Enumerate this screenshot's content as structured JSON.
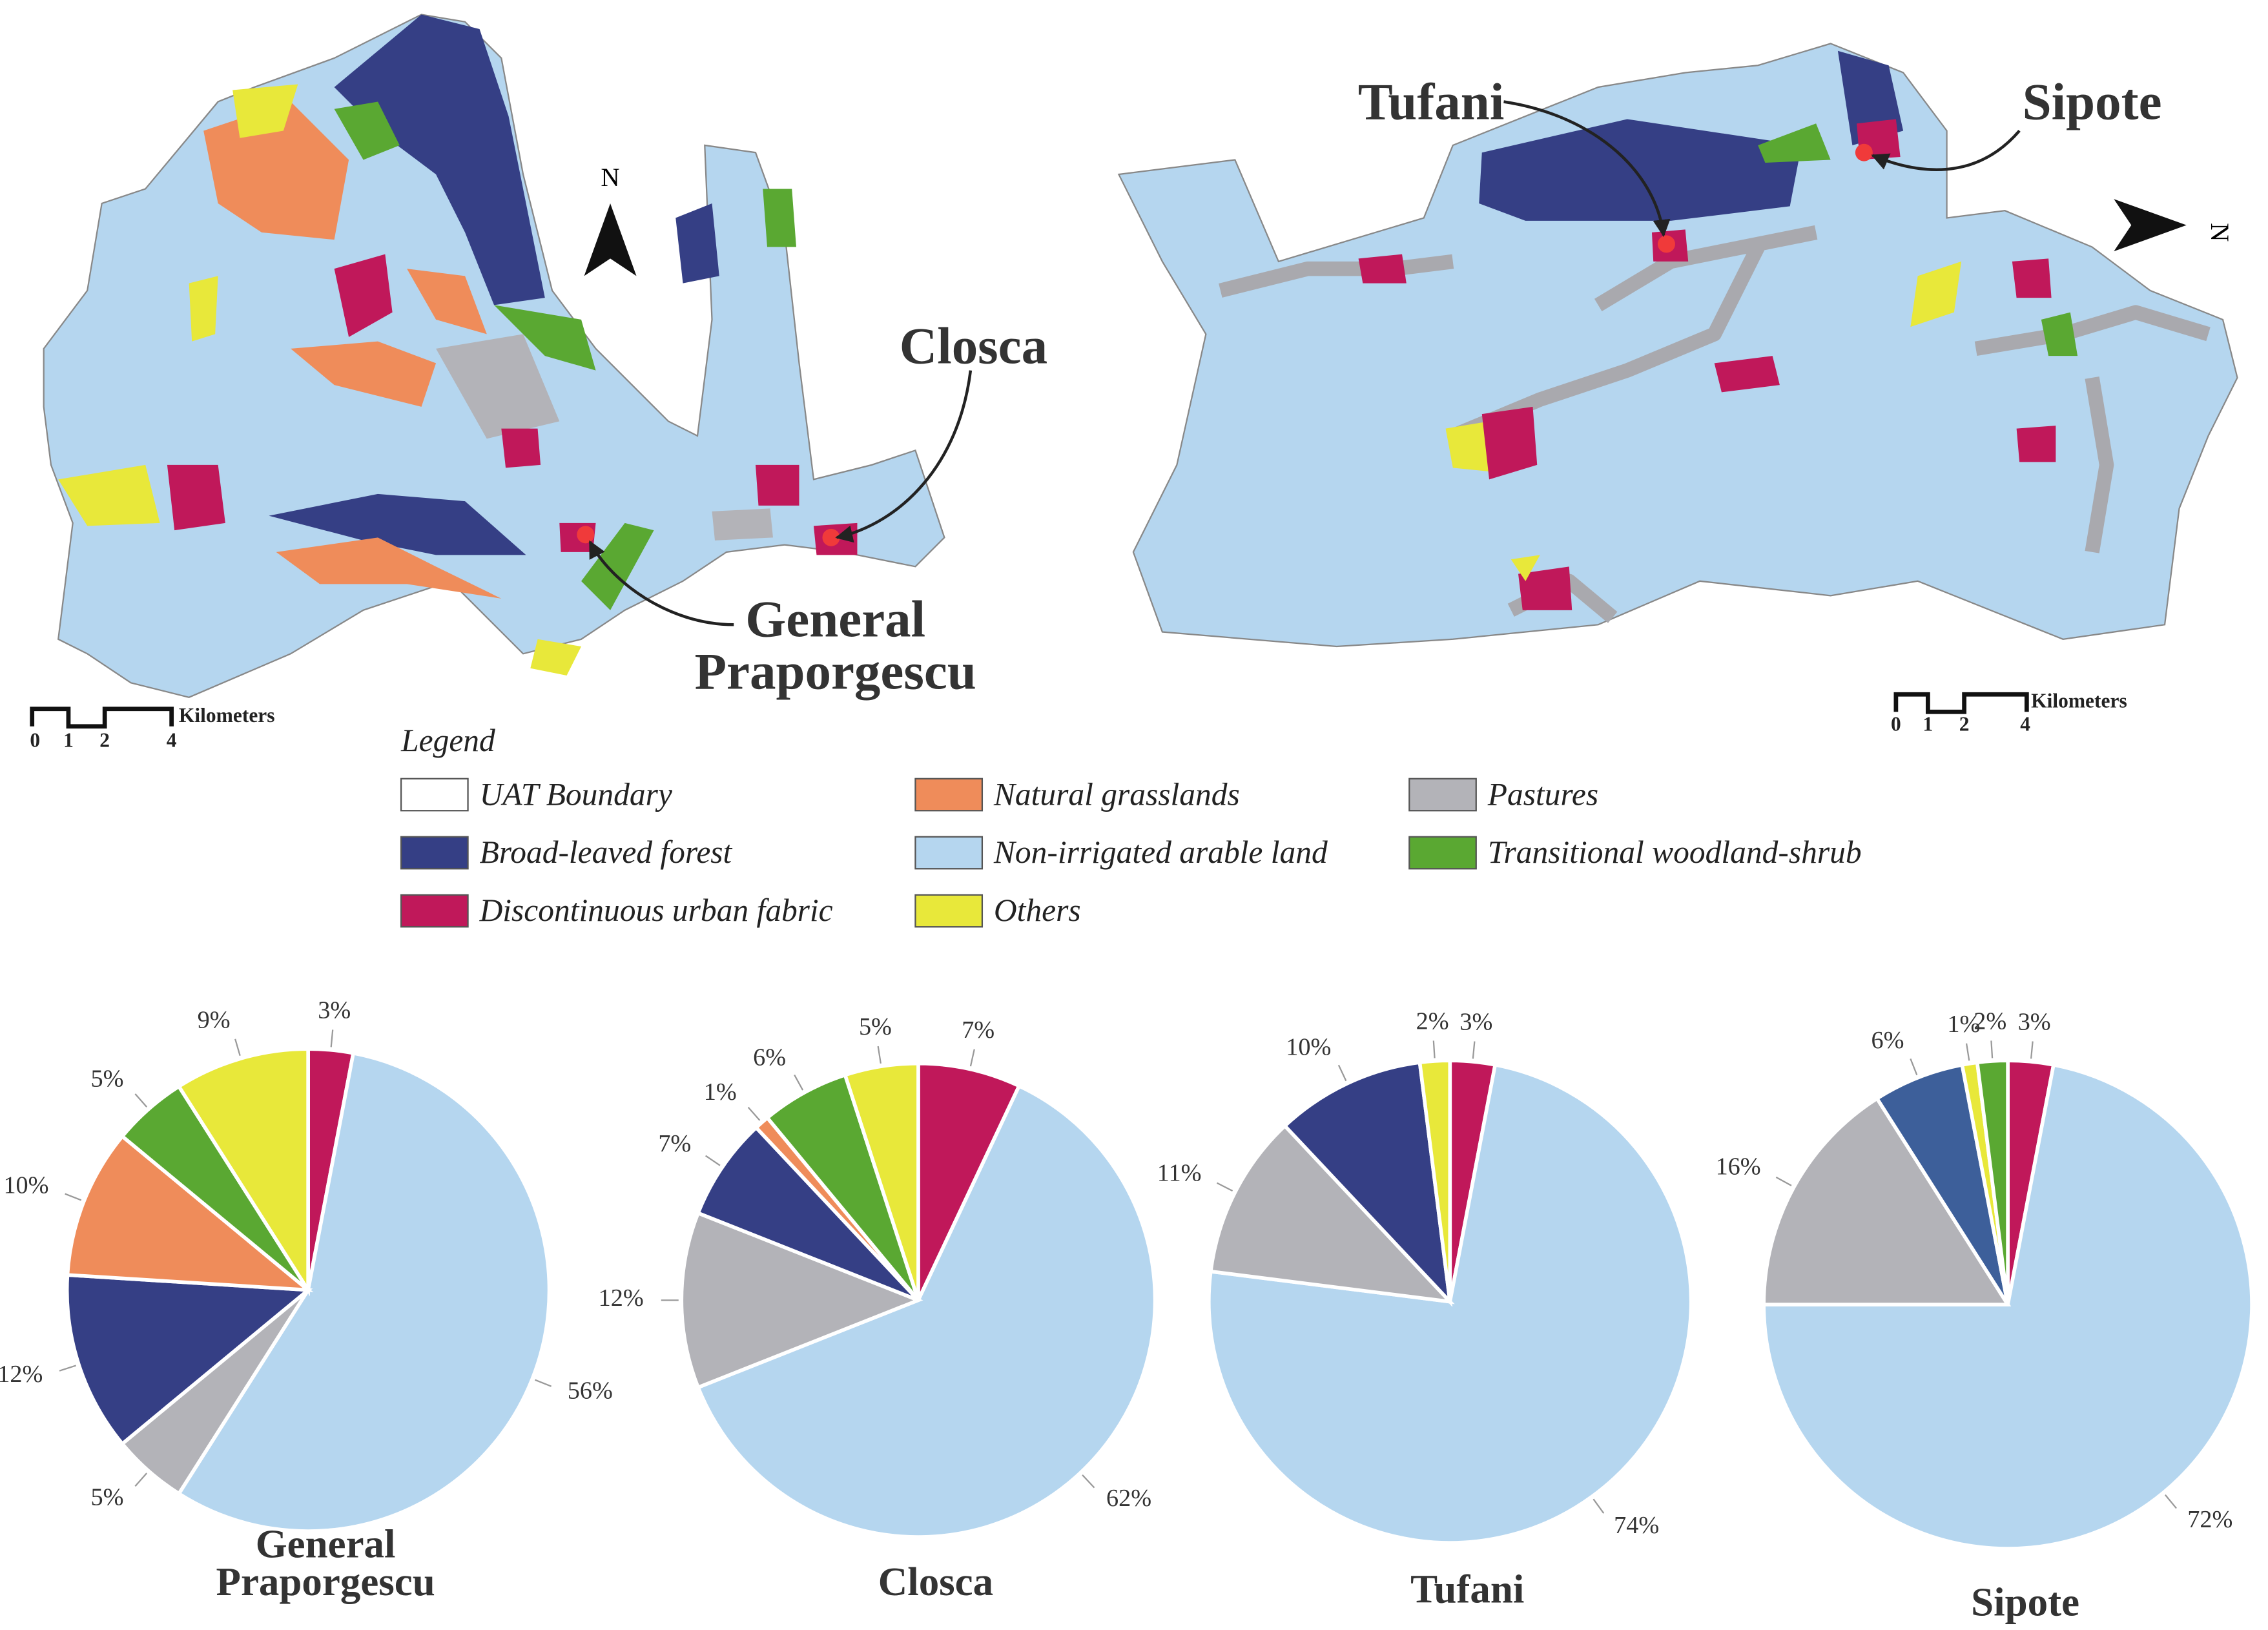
{
  "maps": [
    {
      "north": "N",
      "labels": [
        "Closca",
        "General Praporgescu"
      ],
      "scale": {
        "ticks": [
          0,
          1,
          2,
          4
        ],
        "unit": "Kilometers"
      }
    },
    {
      "north": "N",
      "labels": [
        "Tufani",
        "Sipote"
      ],
      "scale": {
        "ticks": [
          0,
          1,
          2,
          4
        ],
        "unit": "Kilometers"
      }
    }
  ],
  "legend": {
    "title": "Legend",
    "items": [
      {
        "name": "UAT Boundary",
        "color": "#ffffff"
      },
      {
        "name": "Broad-leaved forest",
        "color": "#353f85"
      },
      {
        "name": "Discontinuous urban fabric",
        "color": "#c0185a"
      },
      {
        "name": "Natural grasslands",
        "color": "#ef8c5a"
      },
      {
        "name": "Non-irrigated arable land",
        "color": "#b5d6ef"
      },
      {
        "name": "Others",
        "color": "#e8e83a"
      },
      {
        "name": "Pastures",
        "color": "#b3b3b8"
      },
      {
        "name": "Transitional woodland-shrub",
        "color": "#5aa832"
      }
    ]
  },
  "chart_data": [
    {
      "type": "pie",
      "title": "General Praporgescu",
      "values": [
        3,
        56,
        5,
        12,
        10,
        5,
        9
      ],
      "value_labels": [
        "3%",
        "56%",
        "5%",
        "12%",
        "10%",
        "5%",
        "9%"
      ],
      "colors": [
        "#c0185a",
        "#b5d6ef",
        "#b3b3b8",
        "#353f85",
        "#ef8c5a",
        "#5aa832",
        "#e8e83a"
      ]
    },
    {
      "type": "pie",
      "title": "Closca",
      "values": [
        7,
        62,
        12,
        7,
        1,
        6,
        5
      ],
      "value_labels": [
        "7%",
        "62%",
        "12%",
        "7%",
        "1%",
        "6%",
        "5%"
      ],
      "colors": [
        "#c0185a",
        "#b5d6ef",
        "#b3b3b8",
        "#353f85",
        "#ef8c5a",
        "#5aa832",
        "#e8e83a"
      ]
    },
    {
      "type": "pie",
      "title": "Tufani",
      "values": [
        3,
        74,
        11,
        10,
        2
      ],
      "value_labels": [
        "3%",
        "74%",
        "11%",
        "10%",
        "2%"
      ],
      "colors": [
        "#c0185a",
        "#b5d6ef",
        "#b3b3b8",
        "#353f85",
        "#e8e83a"
      ]
    },
    {
      "type": "pie",
      "title": "Sipote",
      "values": [
        3,
        72,
        16,
        6,
        1,
        2
      ],
      "value_labels": [
        "3%",
        "72%",
        "16%",
        "6%",
        "1%",
        "2%"
      ],
      "colors": [
        "#c0185a",
        "#b5d6ef",
        "#b3b3b8",
        "#3d5f9a",
        "#e8e83a",
        "#5aa832"
      ]
    }
  ]
}
